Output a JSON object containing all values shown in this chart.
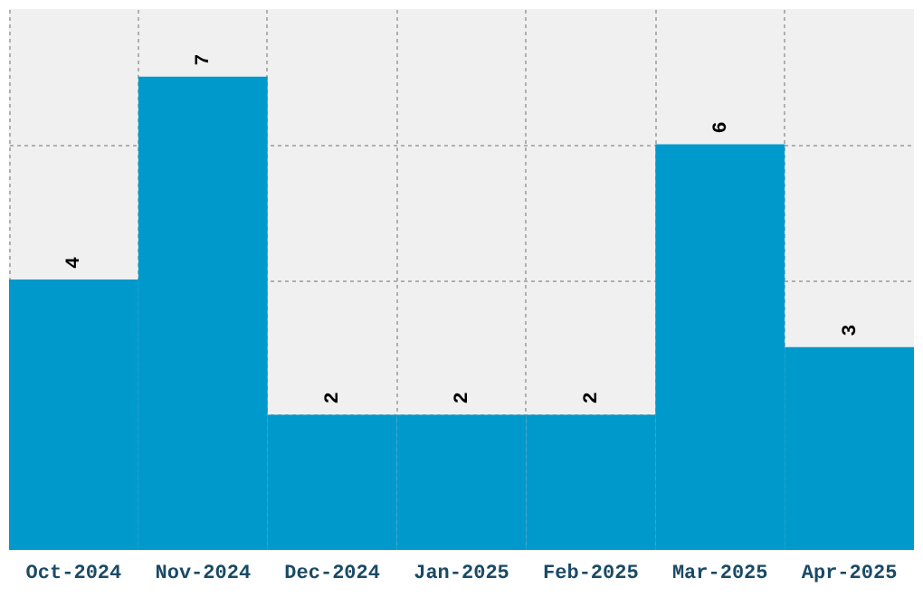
{
  "chart_data": {
    "type": "bar",
    "categories": [
      "Oct-2024",
      "Nov-2024",
      "Dec-2024",
      "Jan-2025",
      "Feb-2025",
      "Mar-2025",
      "Apr-2025"
    ],
    "values": [
      4,
      7,
      2,
      2,
      2,
      6,
      3
    ],
    "color": "#0099cc",
    "data_labels": true,
    "grid": true,
    "tick_labels": "x",
    "ylim": [
      0,
      8
    ],
    "yticks": [
      {
        "value": 2,
        "label": null
      },
      {
        "value": 4,
        "label": null
      },
      {
        "value": 6,
        "label": null
      }
    ]
  }
}
